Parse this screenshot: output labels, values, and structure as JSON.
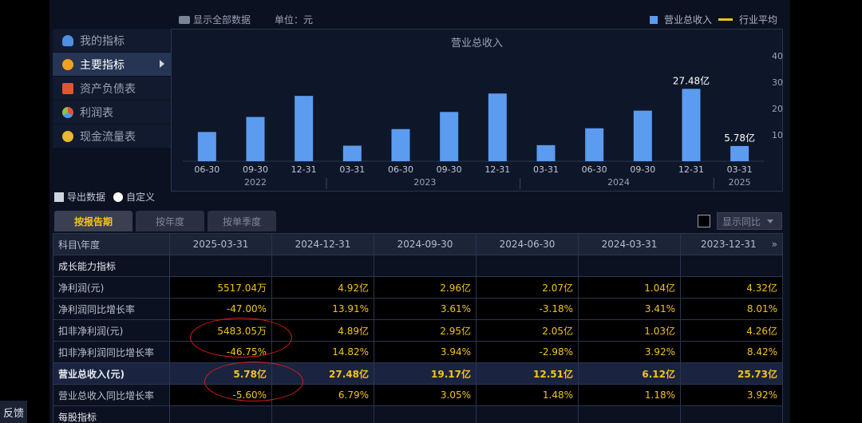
{
  "toolbar": {
    "show_all": "显示全部数据",
    "unit": "单位：元"
  },
  "legend": {
    "bar": "营业总收入",
    "line": "行业平均"
  },
  "sidebar": {
    "items": [
      {
        "label": "我的指标",
        "icon": "user-icon"
      },
      {
        "label": "主要指标",
        "icon": "star-icon",
        "active": true
      },
      {
        "label": "资产负债表",
        "icon": "document-icon"
      },
      {
        "label": "利润表",
        "icon": "pie-chart-icon"
      },
      {
        "label": "现金流量表",
        "icon": "coin-icon"
      }
    ]
  },
  "actions": {
    "export": "导出数据",
    "customize": "自定义"
  },
  "tabs": [
    "按报告期",
    "按年度",
    "按单季度"
  ],
  "yoy": {
    "label": "显示同比"
  },
  "chart_data": {
    "type": "bar",
    "title": "营业总收入",
    "categories": [
      "06-30",
      "09-30",
      "12-31",
      "03-31",
      "06-30",
      "09-30",
      "12-31",
      "03-31",
      "06-30",
      "09-30",
      "12-31",
      "03-31"
    ],
    "years": [
      {
        "label": "2022",
        "span": 3
      },
      {
        "label": "2023",
        "span": 4
      },
      {
        "label": "2024",
        "span": 4
      },
      {
        "label": "2025",
        "span": 1
      }
    ],
    "values": [
      11.1,
      16.8,
      24.8,
      5.9,
      12.2,
      18.7,
      25.7,
      6.1,
      12.5,
      19.2,
      27.48,
      5.78
    ],
    "data_labels": {
      "10": "27.48亿",
      "11": "5.78亿"
    },
    "yticks": [
      10,
      20,
      30,
      40
    ],
    "ylim": [
      0,
      40
    ],
    "color": "#5b9cf0"
  },
  "table": {
    "headers": [
      "科目\\年度",
      "2025-03-31",
      "2024-12-31",
      "2024-09-30",
      "2024-06-30",
      "2024-03-31",
      "2023-12-31"
    ],
    "more": "»",
    "rows": [
      {
        "type": "section",
        "cells": [
          "成长能力指标",
          "",
          "",
          "",
          "",
          "",
          ""
        ]
      },
      {
        "cells": [
          "净利润(元)",
          "5517.04万",
          "4.92亿",
          "2.96亿",
          "2.07亿",
          "1.04亿",
          "4.32亿"
        ]
      },
      {
        "cells": [
          "净利润同比增长率",
          "-47.00%",
          "13.91%",
          "3.61%",
          "-3.18%",
          "3.41%",
          "8.01%"
        ]
      },
      {
        "cells": [
          "扣非净利润(元)",
          "5483.05万",
          "4.89亿",
          "2.95亿",
          "2.05亿",
          "1.03亿",
          "4.26亿"
        ]
      },
      {
        "cells": [
          "扣非净利润同比增长率",
          "-46.75%",
          "14.82%",
          "3.94%",
          "-2.98%",
          "3.92%",
          "8.42%"
        ]
      },
      {
        "type": "highlight",
        "cells": [
          "营业总收入(元)",
          "5.78亿",
          "27.48亿",
          "19.17亿",
          "12.51亿",
          "6.12亿",
          "25.73亿"
        ]
      },
      {
        "cells": [
          "营业总收入同比增长率",
          "-5.60%",
          "6.79%",
          "3.05%",
          "1.48%",
          "1.18%",
          "3.92%"
        ]
      },
      {
        "type": "section",
        "cells": [
          "每股指标",
          "",
          "",
          "",
          "",
          "",
          ""
        ]
      }
    ]
  },
  "feedback": "反馈"
}
